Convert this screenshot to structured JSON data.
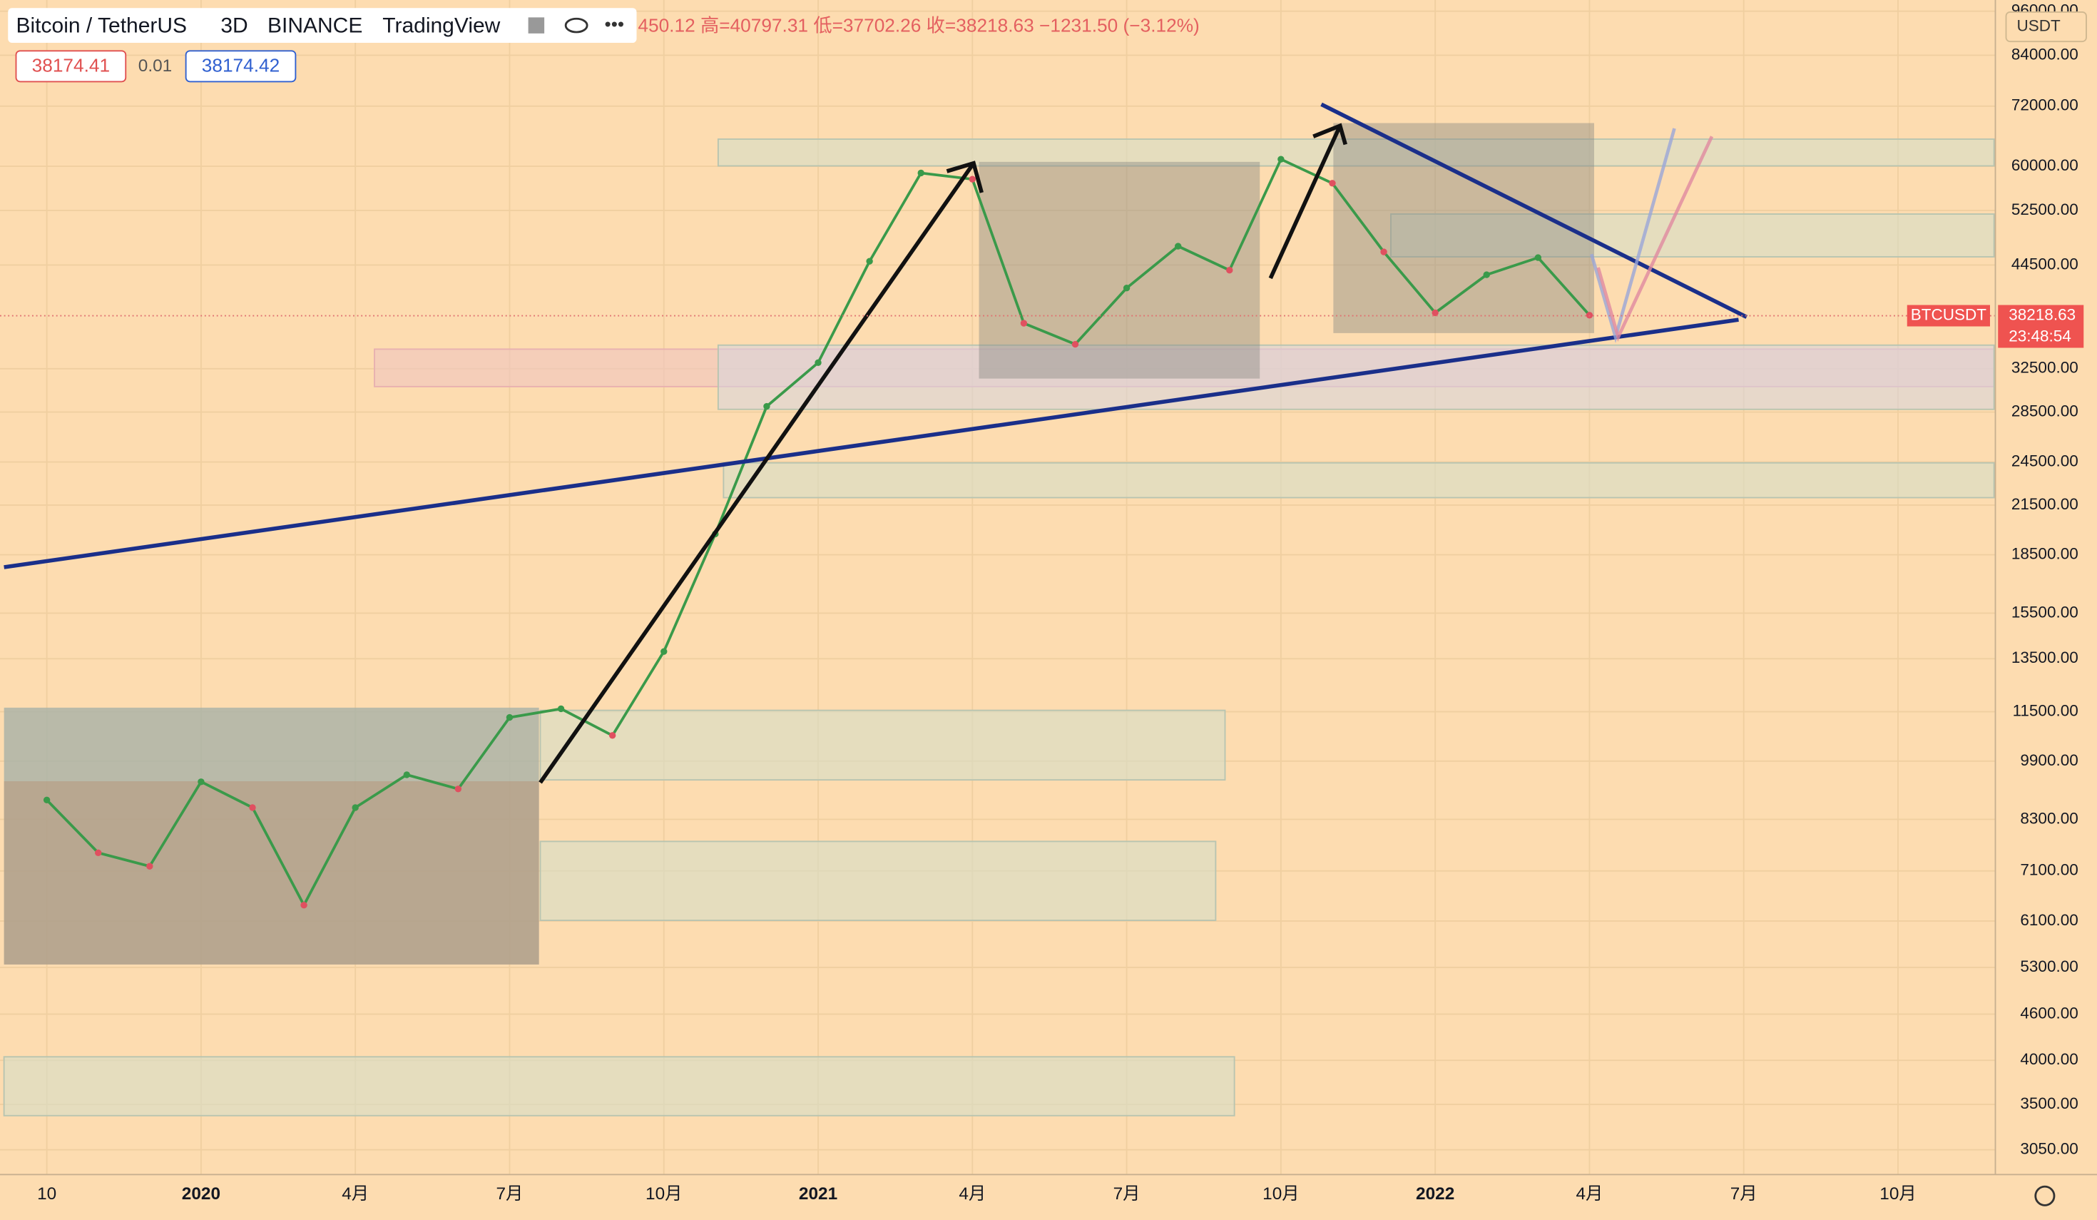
{
  "header": {
    "symbol": "Bitcoin / TetherUS",
    "interval": "3D",
    "exchange": "BINANCE",
    "brand": "TradingView",
    "ohlc": "450.12 高=40797.31 低=37702.26 收=38218.63 −1231.50 (−3.12%)",
    "bid": "38174.41",
    "spread": "0.01",
    "ask": "38174.42",
    "currency": "USDT"
  },
  "price_label": {
    "symbol": "BTCUSDT",
    "price": "38218.63",
    "countdown": "23:48:54"
  },
  "chart_data": {
    "type": "line",
    "log_scale": true,
    "color": "#3a9a4a",
    "categories": [
      "10",
      null,
      null,
      "2020",
      null,
      null,
      "4月",
      null,
      null,
      "7月",
      null,
      null,
      "10月",
      null,
      null,
      "2021",
      null,
      null,
      "4月",
      null,
      null,
      "7月",
      null,
      null,
      "10月",
      null,
      null,
      "2022",
      null,
      null,
      "4月",
      null,
      null,
      "7月",
      null,
      null,
      "10月"
    ],
    "series": [
      {
        "name": "BTCUSDT",
        "color": "#3a9a4a",
        "values": [
          8800,
          7500,
          7200,
          9300,
          8600,
          6400,
          8600,
          9500,
          9100,
          11300,
          11600,
          10700,
          13800,
          19700,
          29000,
          33100,
          45000,
          58800,
          57700,
          37300,
          35000,
          41500,
          47100,
          43800,
          61300,
          57000,
          46300,
          38500,
          43200,
          45500,
          38218.63,
          null,
          null,
          null,
          null,
          null,
          null
        ]
      }
    ],
    "ylim": [
      2830,
      99300
    ],
    "yticks": [
      {
        "value": 96000,
        "label": "96000.00"
      },
      {
        "value": 84000,
        "label": "84000.00"
      },
      {
        "value": 72000,
        "label": "72000.00"
      },
      {
        "value": 60000,
        "label": "60000.00"
      },
      {
        "value": 52500,
        "label": "52500.00"
      },
      {
        "value": 44500,
        "label": "44500.00"
      },
      {
        "value": 32500,
        "label": "32500.00"
      },
      {
        "value": 28500,
        "label": "28500.00"
      },
      {
        "value": 24500,
        "label": "24500.00"
      },
      {
        "value": 21500,
        "label": "21500.00"
      },
      {
        "value": 18500,
        "label": "18500.00"
      },
      {
        "value": 15500,
        "label": "15500.00"
      },
      {
        "value": 13500,
        "label": "13500.00"
      },
      {
        "value": 11500,
        "label": "11500.00"
      },
      {
        "value": 9900,
        "label": "9900.00"
      },
      {
        "value": 8300,
        "label": "8300.00"
      },
      {
        "value": 7100,
        "label": "7100.00"
      },
      {
        "value": 6100,
        "label": "6100.00"
      },
      {
        "value": 5300,
        "label": "5300.00"
      },
      {
        "value": 4600,
        "label": "4600.00"
      },
      {
        "value": 4000,
        "label": "4000.00"
      },
      {
        "value": 3500,
        "label": "3500.00"
      },
      {
        "value": 3050,
        "label": "3050.00"
      }
    ],
    "grid": true
  }
}
